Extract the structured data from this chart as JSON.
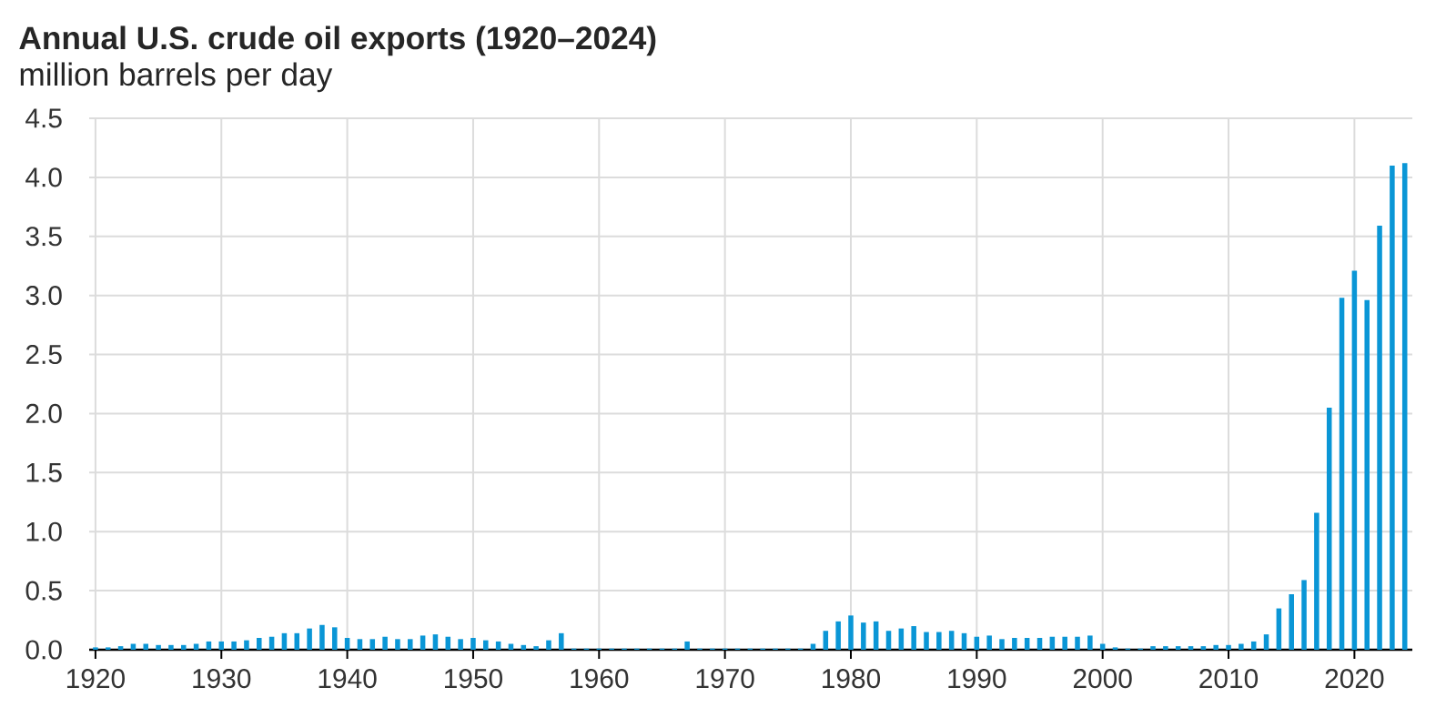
{
  "chart_data": {
    "type": "bar",
    "title": "Annual U.S. crude oil exports (1920–2024)",
    "subtitle": "million barrels per day",
    "x": [
      1920,
      1921,
      1922,
      1923,
      1924,
      1925,
      1926,
      1927,
      1928,
      1929,
      1930,
      1931,
      1932,
      1933,
      1934,
      1935,
      1936,
      1937,
      1938,
      1939,
      1940,
      1941,
      1942,
      1943,
      1944,
      1945,
      1946,
      1947,
      1948,
      1949,
      1950,
      1951,
      1952,
      1953,
      1954,
      1955,
      1956,
      1957,
      1958,
      1959,
      1960,
      1961,
      1962,
      1963,
      1964,
      1965,
      1966,
      1967,
      1968,
      1969,
      1970,
      1971,
      1972,
      1973,
      1974,
      1975,
      1976,
      1977,
      1978,
      1979,
      1980,
      1981,
      1982,
      1983,
      1984,
      1985,
      1986,
      1987,
      1988,
      1989,
      1990,
      1991,
      1992,
      1993,
      1994,
      1995,
      1996,
      1997,
      1998,
      1999,
      2000,
      2001,
      2002,
      2003,
      2004,
      2005,
      2006,
      2007,
      2008,
      2009,
      2010,
      2011,
      2012,
      2013,
      2014,
      2015,
      2016,
      2017,
      2018,
      2019,
      2020,
      2021,
      2022,
      2023,
      2024
    ],
    "values": [
      0.02,
      0.02,
      0.03,
      0.05,
      0.05,
      0.04,
      0.04,
      0.04,
      0.05,
      0.07,
      0.07,
      0.07,
      0.08,
      0.1,
      0.11,
      0.14,
      0.14,
      0.18,
      0.21,
      0.19,
      0.1,
      0.09,
      0.09,
      0.11,
      0.09,
      0.09,
      0.12,
      0.13,
      0.11,
      0.09,
      0.1,
      0.08,
      0.07,
      0.05,
      0.04,
      0.03,
      0.08,
      0.14,
      0.01,
      0.01,
      0.01,
      0.01,
      0.01,
      0.01,
      0.01,
      0.01,
      0.01,
      0.07,
      0.01,
      0.01,
      0.01,
      0.01,
      0.01,
      0.01,
      0.01,
      0.01,
      0.01,
      0.05,
      0.16,
      0.24,
      0.29,
      0.23,
      0.24,
      0.16,
      0.18,
      0.2,
      0.15,
      0.15,
      0.16,
      0.14,
      0.11,
      0.12,
      0.09,
      0.1,
      0.1,
      0.1,
      0.11,
      0.11,
      0.11,
      0.12,
      0.05,
      0.02,
      0.01,
      0.01,
      0.03,
      0.03,
      0.03,
      0.03,
      0.03,
      0.04,
      0.04,
      0.05,
      0.07,
      0.13,
      0.35,
      0.47,
      0.59,
      1.16,
      2.05,
      2.98,
      3.21,
      2.96,
      3.59,
      4.1,
      4.12
    ],
    "color": "#0a96d6",
    "xlim": [
      1919.5,
      2024.6
    ],
    "xticks": [
      1920,
      1930,
      1940,
      1950,
      1960,
      1970,
      1980,
      1990,
      2000,
      2010,
      2020
    ],
    "ylim": [
      0,
      4.5
    ],
    "yticks": [
      {
        "value": 0,
        "label": "0.0"
      },
      {
        "value": 0.5,
        "label": "0.5"
      },
      {
        "value": 1,
        "label": "1.0"
      },
      {
        "value": 1.5,
        "label": "1.5"
      },
      {
        "value": 2,
        "label": "2.0"
      },
      {
        "value": 2.5,
        "label": "2.5"
      },
      {
        "value": 3,
        "label": "3.0"
      },
      {
        "value": 3.5,
        "label": "3.5"
      },
      {
        "value": 4,
        "label": "4.0"
      },
      {
        "value": 4.5,
        "label": "4.5"
      }
    ],
    "grid": true
  }
}
